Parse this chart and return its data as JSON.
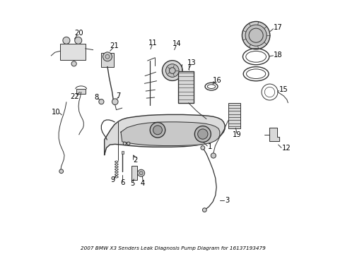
{
  "title": "2007 BMW X3 Senders Leak Diagnosis Pump Diagram for 16137193479",
  "background_color": "#ffffff",
  "line_color": "#333333",
  "text_color": "#000000",
  "fig_width": 4.89,
  "fig_height": 3.6,
  "dpi": 100
}
